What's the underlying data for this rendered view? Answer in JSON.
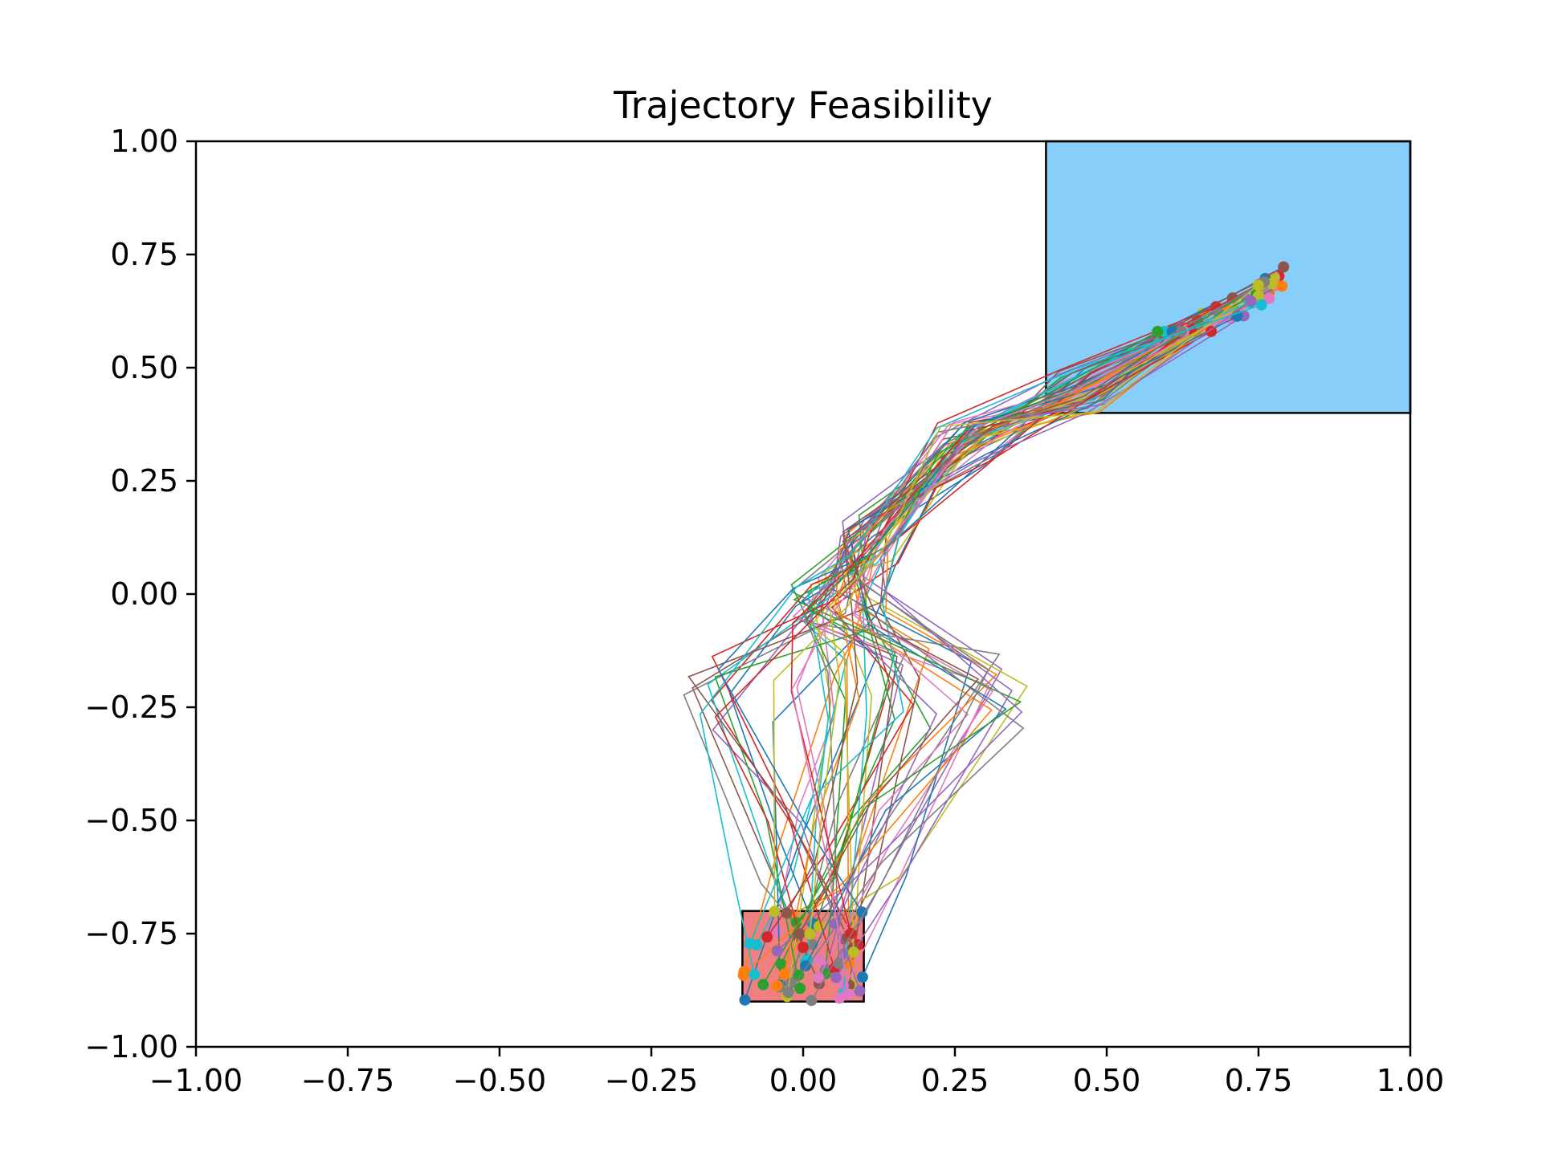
{
  "chart_data": {
    "type": "line",
    "title": "Trajectory Feasibility",
    "xlabel": "",
    "ylabel": "",
    "xlim": [
      -1.0,
      1.0
    ],
    "ylim": [
      -1.0,
      1.0
    ],
    "xticks": [
      "−1.00",
      "−0.75",
      "−0.50",
      "−0.25",
      "0.00",
      "0.25",
      "0.50",
      "0.75",
      "1.00"
    ],
    "yticks": [
      "1.00",
      "0.75",
      "0.50",
      "0.25",
      "0.00",
      "−0.25",
      "−0.50",
      "−0.75",
      "−1.00"
    ],
    "grid": false,
    "regions": [
      {
        "name": "start region",
        "x_range": [
          -0.1,
          0.1
        ],
        "y_range": [
          -0.9,
          -0.7
        ],
        "fill": "#f08080",
        "edge": "#000000"
      },
      {
        "name": "goal region",
        "x_range": [
          0.4,
          1.0
        ],
        "y_range": [
          0.4,
          1.0
        ],
        "fill": "#87cefa",
        "edge": "#000000"
      }
    ],
    "trajectory_count": 60,
    "trajectory_waypoints_y": [
      -0.9,
      -0.15,
      0.0,
      0.15,
      0.35,
      0.7
    ],
    "trajectory_start_x_range": [
      -0.1,
      0.1
    ],
    "trajectory_start_y_range": [
      -0.9,
      -0.7
    ],
    "trajectory_end_x_range": [
      0.58,
      0.8
    ],
    "trajectory_end_y_range": [
      0.58,
      0.78
    ],
    "colors": [
      "#1f77b4",
      "#ff7f0e",
      "#2ca02c",
      "#d62728",
      "#9467bd",
      "#8c564b",
      "#e377c2",
      "#7f7f7f",
      "#bcbd22",
      "#17becf"
    ]
  }
}
